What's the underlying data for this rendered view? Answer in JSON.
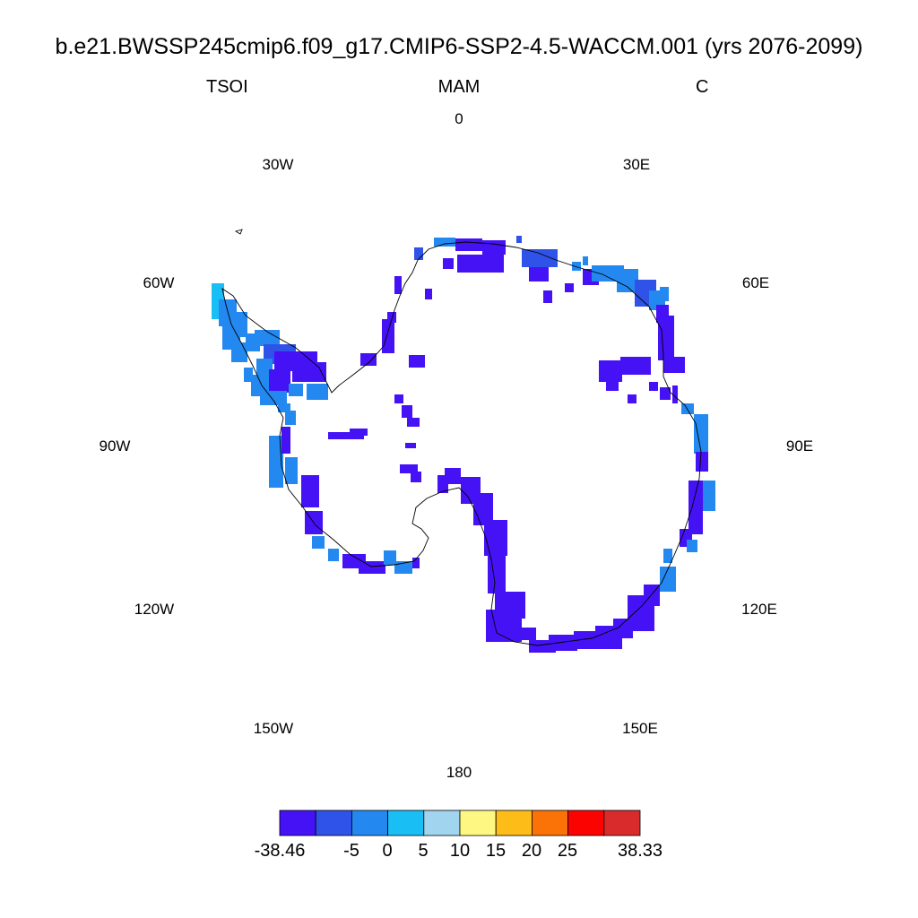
{
  "title": "b.e21.BWSSP245cmip6.f09_g17.CMIP6-SSP2-4.5-WACCM.001 (yrs 2076-2099)",
  "left_label": "TSOI",
  "center_label": "MAM",
  "right_label": "C",
  "longitude_labels": {
    "lon_0": "0",
    "lon_30e": "30E",
    "lon_60e": "60E",
    "lon_90e": "90E",
    "lon_120e": "120E",
    "lon_150e": "150E",
    "lon_180": "180",
    "lon_150w": "150W",
    "lon_120w": "120W",
    "lon_90w": "90W",
    "lon_60w": "60W",
    "lon_30w": "30W"
  },
  "colorbar": {
    "colors": [
      "#4512f5",
      "#2f52e8",
      "#2388f0",
      "#19bef5",
      "#a1d4ee",
      "#fef883",
      "#fdbc17",
      "#fb7206",
      "#fb0301",
      "#d92b2b"
    ],
    "labels": {
      "min": "-38.46",
      "m5": "-5",
      "z0": "0",
      "p5": "5",
      "p10": "10",
      "p15": "15",
      "p20": "20",
      "p25": "25",
      "max": "38.33"
    }
  }
}
